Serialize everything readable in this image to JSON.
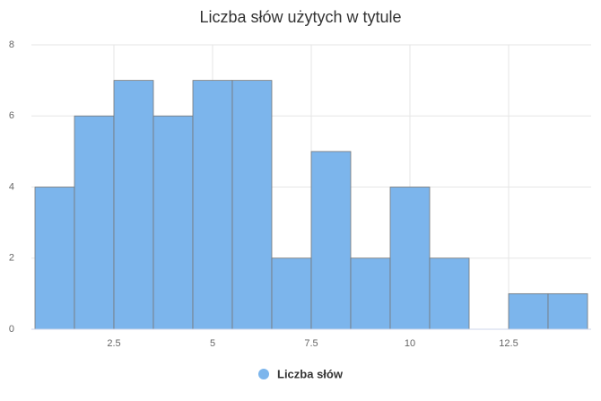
{
  "chart_data": {
    "type": "histogram",
    "title": "Liczba słów użytych w tytule",
    "bins": [
      0.5,
      1.5,
      2.5,
      3.5,
      4.5,
      5.5,
      6.5,
      7.5,
      8.5,
      9.5,
      10.5,
      11.5,
      12.5,
      13.5,
      14.5
    ],
    "series": [
      {
        "name": "Liczba słów",
        "color": "#7cb5ec",
        "values": [
          4,
          6,
          7,
          6,
          7,
          7,
          2,
          5,
          2,
          4,
          2,
          0,
          1,
          1
        ]
      }
    ],
    "xlim": [
      0.5,
      14.5
    ],
    "xticks": [
      2.5,
      5,
      7.5,
      10,
      12.5
    ],
    "ylim": [
      0,
      8
    ],
    "yticks": [
      0,
      2,
      4,
      6,
      8
    ],
    "grid": true,
    "legend": "bottom"
  }
}
